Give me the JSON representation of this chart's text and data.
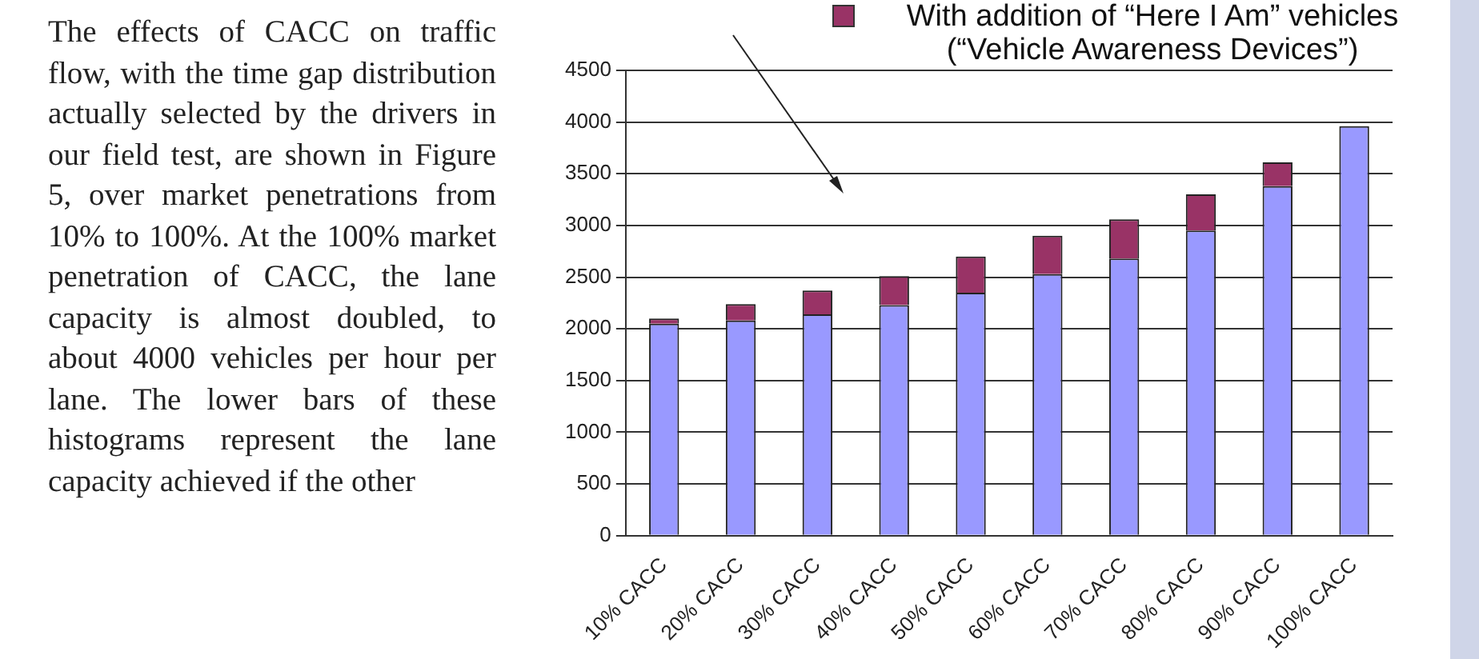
{
  "chart_data": {
    "type": "bar",
    "stacked": true,
    "categories": [
      "10% CACC",
      "20% CACC",
      "30% CACC",
      "40% CACC",
      "50% CACC",
      "60% CACC",
      "70% CACC",
      "80% CACC",
      "90% CACC",
      "100% CACC"
    ],
    "series": [
      {
        "color": "#9999ff",
        "values": [
          2050,
          2080,
          2140,
          2230,
          2350,
          2530,
          2680,
          2950,
          3380,
          3960
        ]
      },
      {
        "name": "With addition of “Here I Am” vehicles (“Vehicle Awareness Devices”)",
        "color": "#993366",
        "values": [
          50,
          160,
          230,
          280,
          350,
          370,
          380,
          350,
          230,
          null
        ]
      }
    ],
    "ylim": [
      0,
      4500
    ],
    "yticks": [
      0,
      500,
      1000,
      1500,
      2000,
      2500,
      3000,
      3500,
      4000,
      4500
    ],
    "grid": "y",
    "legend": "top right",
    "annotations": [
      "The effects of CACC on traffic flow, with the time gap distribution actually selected by the drivers in our field test, are shown in Figure 5, over market penetrations from 10% to 100%.  At the 100% market penetration of CACC, the lane capacity is almost doubled, to about 4000 vehicles per hour per lane.  The lower bars of these histograms represent the lane capacity achieved if the other"
    ]
  }
}
